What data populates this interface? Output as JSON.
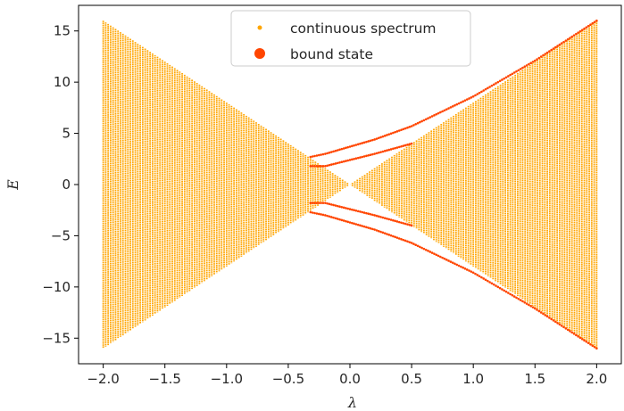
{
  "chart_data": {
    "type": "scatter",
    "title": "",
    "xlabel": "λ",
    "ylabel": "E",
    "xlim": [
      -2.2,
      2.2
    ],
    "ylim": [
      -17.5,
      17.5
    ],
    "xticks": [
      -2.0,
      -1.5,
      -1.0,
      -0.5,
      0.0,
      0.5,
      1.0,
      1.5,
      2.0
    ],
    "xtick_labels": [
      "−2.0",
      "−1.5",
      "−1.0",
      "−0.5",
      "0.0",
      "0.5",
      "1.0",
      "1.5",
      "2.0"
    ],
    "yticks": [
      -15,
      -10,
      -5,
      0,
      5,
      10,
      15
    ],
    "ytick_labels": [
      "−15",
      "−10",
      "−5",
      "0",
      "5",
      "10",
      "15"
    ],
    "grid": false,
    "legend": {
      "placement": "top-center"
    },
    "series": [
      {
        "name": "continuous spectrum",
        "color": "#FFA500",
        "marker_size": "small",
        "description_model": "band of eigenvalues filling |E| <= 8*|lambda| for lambda in [-2, 2]",
        "x_range": [
          -2.0,
          2.0
        ],
        "x_samples": 201,
        "band_max_abs_E_at_x_minus2": 16.0,
        "band_max_abs_E_at_x_plus2": 16.0
      },
      {
        "name": "bound state",
        "color": "#FF4500",
        "marker_size": "large",
        "branches": [
          {
            "x": [
              -0.32,
              -0.2,
              0.0,
              0.2,
              0.5,
              1.0,
              1.5,
              2.0
            ],
            "y": [
              2.7,
              3.0,
              3.7,
              4.4,
              5.7,
              8.6,
              12.1,
              16.0
            ]
          },
          {
            "x": [
              -0.32,
              -0.2,
              0.0,
              0.2,
              0.5
            ],
            "y": [
              1.8,
              1.8,
              2.4,
              3.0,
              4.0
            ]
          },
          {
            "x": [
              -0.32,
              -0.2,
              0.0,
              0.2,
              0.5
            ],
            "y": [
              -1.8,
              -1.8,
              -2.4,
              -3.0,
              -4.0
            ]
          },
          {
            "x": [
              -0.32,
              -0.2,
              0.0,
              0.2,
              0.5,
              1.0,
              1.5,
              2.0
            ],
            "y": [
              -2.7,
              -3.0,
              -3.7,
              -4.4,
              -5.7,
              -8.6,
              -12.1,
              -16.0
            ]
          }
        ]
      }
    ]
  }
}
